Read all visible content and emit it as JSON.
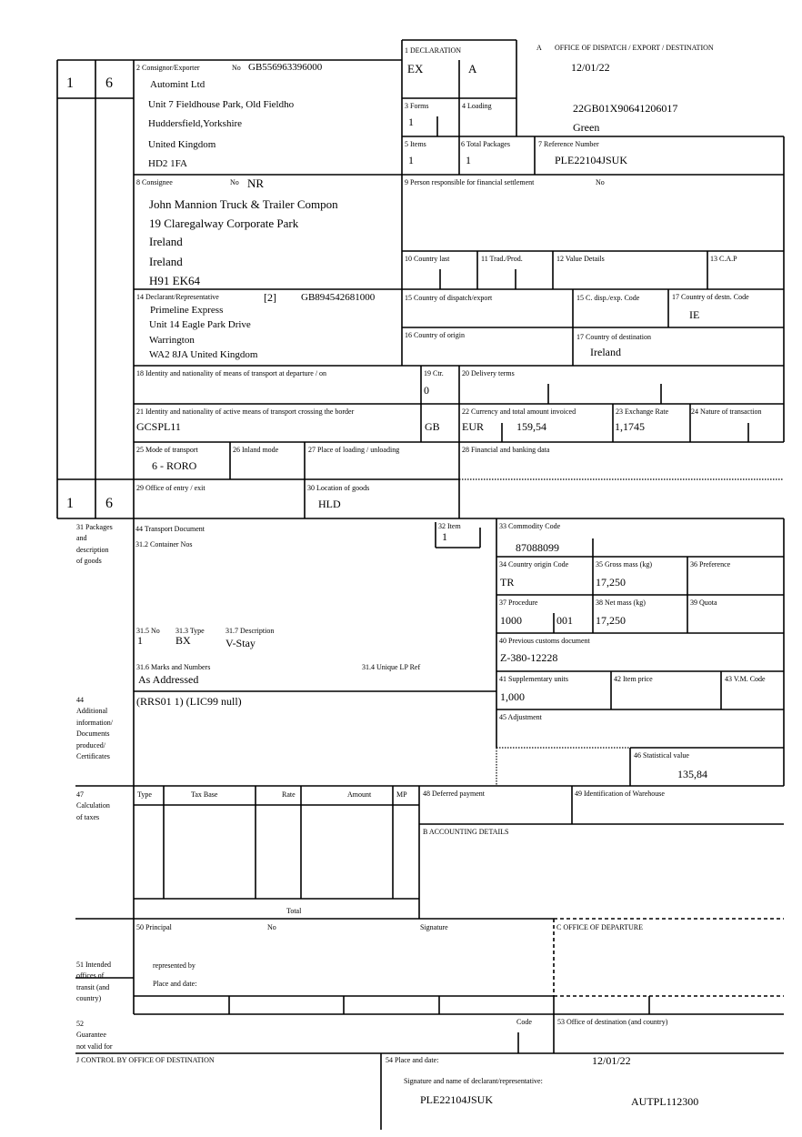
{
  "sheet_numbers": {
    "top_left": "1",
    "top_right": "6",
    "bottom_left": "1",
    "bottom_right": "6"
  },
  "box1": {
    "label": "1 DECLARATION",
    "type": "EX",
    "subtype": "A"
  },
  "boxA": {
    "label": "A",
    "title": "OFFICE OF DISPATCH / EXPORT / DESTINATION",
    "date": "12/01/22",
    "mrn": "22GB01X90641206017",
    "route": "Green"
  },
  "consignor": {
    "label": "2 Consignor/Exporter",
    "no_label": "No",
    "no": "GB556963396000",
    "lines": [
      "Automint Ltd",
      "Unit 7 Fieldhouse Park, Old Fieldho",
      "Huddersfield,Yorkshire",
      "United Kingdom",
      "HD2 1FA"
    ]
  },
  "box3": {
    "label": "3 Forms",
    "value": "1"
  },
  "box4": {
    "label": "4 Loading"
  },
  "box5": {
    "label": "5 Items",
    "value": "1"
  },
  "box6": {
    "label": "6 Total Packages",
    "value": "1"
  },
  "box7": {
    "label": "7 Reference Number",
    "value": "PLE22104JSUK"
  },
  "consignee": {
    "label": "8 Consignee",
    "no_label": "No",
    "no": "NR",
    "lines": [
      "John Mannion Truck & Trailer Compon",
      "19 Claregalway Corporate Park",
      "Ireland",
      "Ireland",
      "H91 EK64"
    ]
  },
  "box9": {
    "label": "9 Person responsible for financial settlement",
    "no_label": "No"
  },
  "box10": {
    "label": "10 Country last"
  },
  "box11": {
    "label": "11 Trad./Prod."
  },
  "box12": {
    "label": "12 Value Details"
  },
  "box13": {
    "label": "13 C.A.P"
  },
  "declarant": {
    "label": "14 Declarant/Representative",
    "rep_code": "[2]",
    "no": "GB894542681000",
    "lines": [
      "Primeline Express",
      "Unit 14 Eagle Park Drive",
      "Warrington",
      "WA2 8JA United Kingdom"
    ]
  },
  "box15": {
    "label": "15 Country of dispatch/export"
  },
  "box15a": {
    "label": "15 C. disp./exp. Code"
  },
  "box17a": {
    "label": "17 Country of destn. Code",
    "value": "IE"
  },
  "box16": {
    "label": "16 Country of origin"
  },
  "box17": {
    "label": "17 Country of destination",
    "value": "Ireland"
  },
  "box18": {
    "label": "18 Identity and nationality of means of transport at departure / on"
  },
  "box19": {
    "label": "19 Ctr.",
    "value": "0"
  },
  "box20": {
    "label": "20 Delivery terms"
  },
  "box21": {
    "label": "21 Identity and nationality of active means of transport crossing the border",
    "value": "GCSPL11",
    "nationality": "GB"
  },
  "box22": {
    "label": "22 Currency and total amount invoiced",
    "currency": "EUR",
    "amount": "159,54"
  },
  "box23": {
    "label": "23 Exchange Rate",
    "value": "1,1745"
  },
  "box24": {
    "label": "24 Nature of transaction"
  },
  "box25": {
    "label": "25 Mode of transport",
    "value": "6 - RORO"
  },
  "box26": {
    "label": "26 Inland mode"
  },
  "box27": {
    "label": "27 Place of loading / unloading"
  },
  "box28": {
    "label": "28 Financial and banking data"
  },
  "box29": {
    "label": "29 Office of entry / exit"
  },
  "box30": {
    "label": "30 Location of goods",
    "value": "HLD"
  },
  "box31": {
    "label": "31 Packages\nand\ndescription\nof goods",
    "transport_doc_label": "44 Transport Document",
    "container_label": "31.2 Container Nos",
    "no_label": "31.5 No",
    "no": "1",
    "type_label": "31.3 Type",
    "type": "BX",
    "desc_label": "31.7 Description",
    "desc": "V-Stay",
    "marks_label": "31.6 Marks and Numbers",
    "marks": "As Addressed",
    "unique_ref_label": "31.4 Unique LP Ref"
  },
  "box32": {
    "label": "32 Item",
    "value": "1"
  },
  "box33": {
    "label": "33 Commodity Code",
    "value": "87088099"
  },
  "box34": {
    "label": "34 Country origin Code",
    "value": "TR"
  },
  "box35": {
    "label": "35 Gross mass (kg)",
    "value": "17,250"
  },
  "box36": {
    "label": "36 Preference"
  },
  "box37": {
    "label": "37 Procedure",
    "value": "1000",
    "sub": "001"
  },
  "box38": {
    "label": "38 Net mass (kg)",
    "value": "17,250"
  },
  "box39": {
    "label": "39 Quota"
  },
  "box40": {
    "label": "40 Previous customs document",
    "value": "Z-380-12228"
  },
  "box41": {
    "label": "41 Supplementary units",
    "value": "1,000"
  },
  "box42": {
    "label": "42 Item price"
  },
  "box43": {
    "label": "43 V.M. Code"
  },
  "box44": {
    "label": "44\nAdditional\ninformation/\nDocuments\nproduced/\nCertificates",
    "value": "(RRS01 1) (LIC99 null)"
  },
  "box45": {
    "label": "45 Adjustment"
  },
  "box46": {
    "label": "46 Statistical value",
    "value": "135,84"
  },
  "box47": {
    "label": "47\nCalculation\n  of taxes",
    "columns": [
      "Type",
      "Tax Base",
      "Rate",
      "Amount",
      "MP"
    ],
    "total_label": "Total"
  },
  "box48": {
    "label": "48 Deferred payment"
  },
  "box49": {
    "label": "49 Identification of Warehouse"
  },
  "boxB": {
    "label": "B ACCOUNTING DETAILS"
  },
  "box50": {
    "label": "50 Principal",
    "no_label": "No",
    "signature_label": "Signature",
    "represented_label": "represented by",
    "place_label": "Place and date:"
  },
  "boxC": {
    "label": "C OFFICE OF DEPARTURE"
  },
  "box51": {
    "label": "51 Intended\noffices of\ntransit (and\ncountry)"
  },
  "box52": {
    "label": "52\nGuarantee\nnot valid for",
    "code_label": "Code"
  },
  "box53": {
    "label": "53 Office of destination (and country)"
  },
  "boxJ": {
    "label": "J CONTROL BY OFFICE OF DESTINATION"
  },
  "box54": {
    "label": "54 Place and date:",
    "date": "12/01/22",
    "signature_label": "Signature and name of declarant/representative:",
    "reference": "PLE22104JSUK",
    "code": "AUTPL112300"
  }
}
